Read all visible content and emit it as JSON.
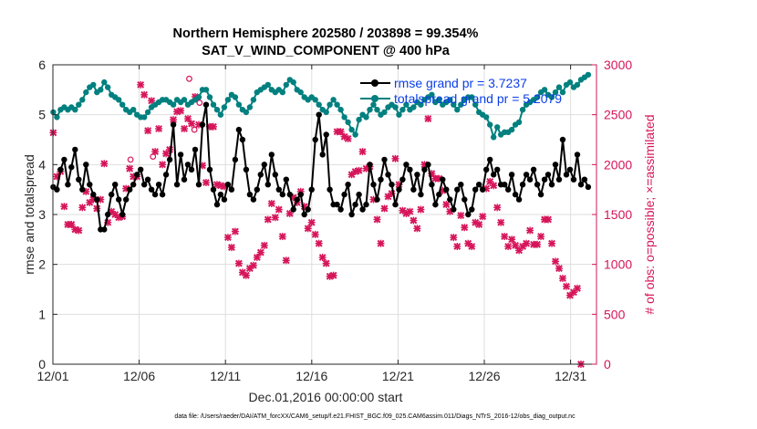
{
  "chart_data": {
    "type": "line",
    "title_line1": "Northern Hemisphere 202580 / 203898 = 99.354%",
    "title_line2": "SAT_V_WIND_COMPONENT @ 400 hPa",
    "xlabel": "Dec.01,2016 00:00:00 start",
    "ylabel_left": "rmse and totalspread",
    "ylabel_right": "# of obs: o=possible; ×=assimilated",
    "footer": "data file: /Users/raeder/DAI/ATM_forcXX/CAM6_setup/f.e21.FHIST_BGC.f09_025.CAM6assim.011/Diags_NTrS_2016-12/obs_diag_output.nc",
    "x_range_days": [
      0,
      31.5
    ],
    "y_left_range": [
      0,
      6
    ],
    "y_right_range": [
      0,
      3000
    ],
    "x_ticks": [
      {
        "day": 0,
        "label": "12/01"
      },
      {
        "day": 5,
        "label": "12/06"
      },
      {
        "day": 10,
        "label": "12/11"
      },
      {
        "day": 15,
        "label": "12/16"
      },
      {
        "day": 20,
        "label": "12/21"
      },
      {
        "day": 25,
        "label": "12/26"
      },
      {
        "day": 30,
        "label": "12/31"
      }
    ],
    "y_left_ticks": [
      "0",
      "1",
      "2",
      "3",
      "4",
      "5",
      "6"
    ],
    "y_right_ticks": [
      "0",
      "500",
      "1000",
      "1500",
      "2000",
      "2500",
      "3000"
    ],
    "grid": true,
    "legend_position": "top-right",
    "colors": {
      "rmse": "#000000",
      "totalspread": "#00807f",
      "obs": "#d6155a",
      "legend_text": "#0a3ee8"
    },
    "series": [
      {
        "name": "rmse grand pr = 3.7237",
        "axis": "left",
        "values": [
          3.55,
          3.5,
          3.9,
          4.1,
          3.6,
          3.95,
          4.3,
          3.7,
          3.5,
          4.0,
          3.6,
          3.4,
          3.3,
          2.7,
          2.7,
          3.0,
          3.4,
          3.6,
          3.3,
          3.0,
          3.3,
          3.5,
          3.6,
          3.8,
          3.9,
          3.6,
          3.7,
          3.5,
          3.4,
          3.6,
          3.4,
          3.8,
          4.1,
          4.8,
          3.6,
          4.2,
          3.7,
          4.0,
          3.9,
          4.3,
          3.6,
          4.8,
          5.2,
          3.9,
          3.5,
          3.2,
          3.4,
          3.3,
          3.6,
          3.5,
          4.1,
          4.7,
          4.5,
          3.9,
          3.4,
          3.3,
          3.5,
          3.8,
          4.0,
          3.6,
          4.2,
          3.8,
          3.5,
          3.4,
          3.7,
          3.4,
          3.1,
          3.3,
          3.4,
          3.0,
          3.1,
          3.5,
          4.5,
          5.0,
          4.2,
          4.6,
          3.5,
          3.2,
          3.2,
          3.1,
          3.4,
          3.6,
          3.0,
          3.2,
          3.4,
          3.1,
          3.2,
          4.0,
          3.6,
          3.3,
          3.7,
          4.1,
          3.8,
          3.6,
          3.2,
          3.5,
          3.7,
          4.0,
          3.9,
          3.5,
          3.8,
          3.4,
          3.9,
          4.0,
          3.6,
          3.2,
          3.4,
          3.7,
          3.5,
          3.3,
          3.1,
          3.5,
          3.6,
          3.3,
          3.0,
          3.1,
          3.5,
          3.6,
          3.5,
          3.9,
          4.1,
          3.8,
          3.9,
          3.6,
          3.6,
          3.5,
          3.8,
          3.4,
          3.3,
          3.6,
          3.8,
          3.7,
          3.9,
          3.6,
          3.4,
          3.7,
          3.8,
          3.6,
          4.0,
          3.7,
          4.5,
          3.8,
          3.9,
          3.7,
          4.2,
          3.6,
          3.7,
          3.55
        ]
      },
      {
        "name": "totalspread grand pr = 5.2079",
        "axis": "left",
        "values": [
          5.05,
          4.95,
          5.1,
          5.15,
          5.1,
          5.15,
          5.1,
          5.2,
          5.3,
          5.45,
          5.55,
          5.6,
          5.45,
          5.5,
          5.65,
          5.55,
          5.4,
          5.35,
          5.3,
          5.2,
          5.1,
          5.05,
          5.1,
          5.0,
          4.95,
          4.95,
          5.05,
          5.15,
          5.2,
          5.25,
          5.3,
          5.3,
          5.25,
          5.2,
          5.3,
          5.25,
          5.3,
          5.2,
          5.25,
          5.3,
          5.35,
          5.5,
          5.5,
          5.35,
          5.2,
          5.1,
          5.0,
          5.15,
          5.3,
          5.4,
          5.35,
          5.2,
          5.1,
          5.05,
          5.15,
          5.3,
          5.45,
          5.5,
          5.55,
          5.6,
          5.5,
          5.45,
          5.5,
          5.45,
          5.6,
          5.7,
          5.65,
          5.5,
          5.45,
          5.35,
          5.3,
          5.35,
          5.3,
          5.2,
          5.1,
          5.05,
          5.2,
          5.3,
          5.2,
          5.1,
          4.95,
          4.85,
          4.7,
          4.6,
          4.9,
          5.0,
          4.95,
          5.1,
          5.2,
          5.1,
          5.0,
          5.05,
          5.15,
          5.2,
          5.15,
          5.0,
          5.1,
          5.2,
          5.1,
          5.15,
          5.25,
          5.2,
          5.3,
          5.35,
          5.4,
          5.25,
          5.3,
          5.2,
          5.25,
          5.3,
          5.2,
          5.1,
          5.2,
          5.3,
          5.35,
          5.35,
          5.2,
          5.05,
          5.0,
          4.95,
          4.8,
          4.55,
          4.75,
          4.6,
          4.65,
          4.65,
          4.7,
          4.8,
          4.85,
          5.1,
          5.2,
          5.25,
          5.3,
          5.35,
          5.45,
          5.5,
          5.4,
          5.35,
          5.45,
          5.55,
          5.45,
          5.6,
          5.65,
          5.55,
          5.6,
          5.7,
          5.75,
          5.8
        ]
      },
      {
        "name": "assimilated",
        "axis": "right",
        "values": [
          2320,
          1880,
          1930,
          1580,
          1400,
          1400,
          1350,
          1340,
          1570,
          1730,
          1620,
          1650,
          1560,
          1650,
          2010,
          1420,
          1530,
          1500,
          1470,
          1480,
          1760,
          1960,
          1880,
          1880,
          2800,
          2700,
          2340,
          2640,
          2130,
          2360,
          2000,
          2110,
          2150,
          2450,
          2530,
          2540,
          2360,
          2460,
          2410,
          2680,
          2400,
          1990,
          1820,
          2380,
          2380,
          1800,
          1790,
          1780,
          1270,
          1170,
          1330,
          1010,
          920,
          890,
          960,
          990,
          1070,
          1120,
          1190,
          1450,
          1610,
          1470,
          1550,
          1280,
          1040,
          1510,
          1670,
          1620,
          1730,
          1580,
          1360,
          1420,
          1300,
          1210,
          1070,
          1010,
          880,
          890,
          2330,
          2330,
          2280,
          2260,
          1900,
          1930,
          1940,
          2130,
          1960,
          1980,
          1650,
          1450,
          1210,
          1560,
          1680,
          1710,
          2060,
          1800,
          1540,
          1510,
          1530,
          1440,
          1360,
          1550,
          2000,
          2460,
          1910,
          1860,
          1860,
          1740,
          1600,
          1530,
          1270,
          1180,
          1490,
          1370,
          1210,
          1180,
          1420,
          1400,
          1480,
          1760,
          1830,
          1790,
          1570,
          1420,
          1280,
          1180,
          1250,
          1190,
          1140,
          1180,
          1210,
          1340,
          1200,
          1200,
          1280,
          1450,
          1450,
          1210,
          1030,
          960,
          860,
          780,
          690,
          720,
          760,
          0
        ]
      }
    ],
    "possible_markers": [
      {
        "day": 7.9,
        "count": 2860
      },
      {
        "day": 8.5,
        "count": 2620
      },
      {
        "day": 5.8,
        "count": 2080
      },
      {
        "day": 4.5,
        "count": 2050
      },
      {
        "day": 8.2,
        "count": 2350
      }
    ],
    "possible_note": "possible counts largely coincide with assimilated counts; visible 'o' markers drawn at the above positions"
  }
}
